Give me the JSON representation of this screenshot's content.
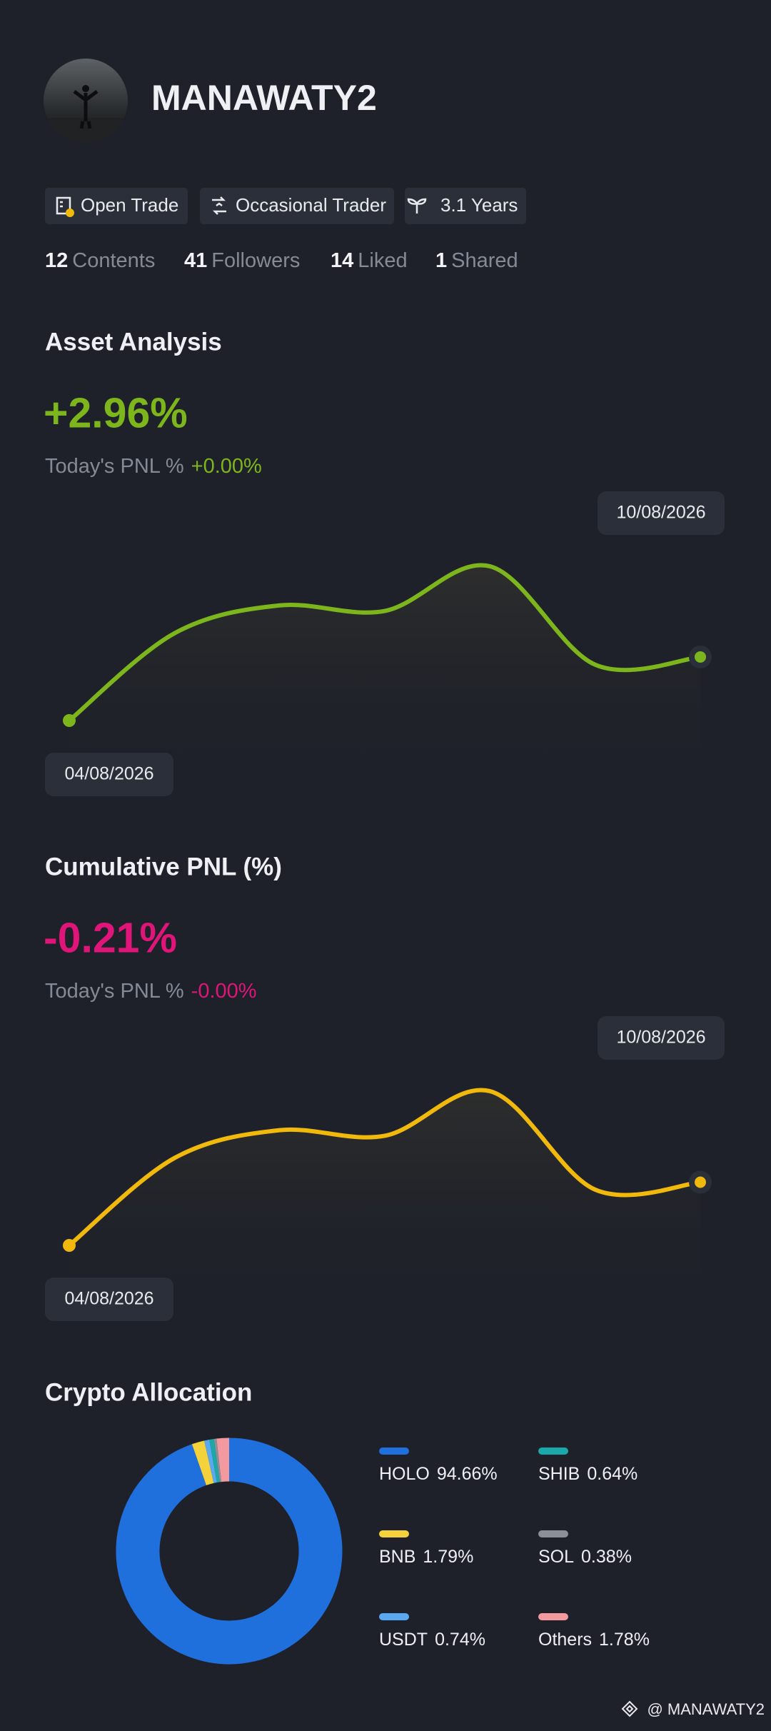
{
  "profile": {
    "name": "MANAWATY2",
    "tags": [
      "Open Trade",
      "Occasional Trader",
      "3.1 Years"
    ],
    "stats": [
      {
        "count": 12,
        "label": "Contents"
      },
      {
        "count": 41,
        "label": "Followers"
      },
      {
        "count": 14,
        "label": "Liked"
      },
      {
        "count": 1,
        "label": "Shared"
      }
    ]
  },
  "chart_data": [
    {
      "type": "line",
      "title": "Asset Analysis",
      "headline": "+2.96%",
      "today_label": "Today's PNL %",
      "today_value": "+0.00%",
      "x": [
        "04/08/2026",
        null,
        null,
        null,
        null,
        null,
        "10/08/2026"
      ],
      "series": [
        {
          "color": "#7db61c",
          "values": [
            0,
            4.06,
            5.36,
            5.1,
            7.18,
            2.6,
            2.96
          ]
        }
      ]
    },
    {
      "type": "line",
      "title": "Cumulative PNL (%)",
      "headline": "-0.21%",
      "today_label": "Today's PNL %",
      "today_value": "-0.00%",
      "x": [
        "04/08/2026",
        null,
        null,
        null,
        null,
        null,
        "10/08/2026"
      ],
      "series": [
        {
          "color": "#f0b90b",
          "values": [
            -0.55,
            -0.08,
            0.07,
            0.04,
            0.28,
            -0.25,
            -0.21
          ]
        }
      ]
    },
    {
      "type": "pie",
      "title": "Crypto Allocation",
      "categories": [
        "HOLO",
        "BNB",
        "USDT",
        "SHIB",
        "SOL",
        "Others"
      ],
      "values": [
        94.66,
        1.79,
        0.74,
        0.64,
        0.38,
        1.78
      ],
      "value_labels": [
        "94.66%",
        "1.79%",
        "0.74%",
        "0.64%",
        "0.38%",
        "1.78%"
      ],
      "colors": [
        "#1f6fdc",
        "#f3d23c",
        "#5aa9f0",
        "#1aa8a8",
        "#8a8f98",
        "#f29aa0"
      ]
    }
  ],
  "watermark": "@ MANAWATY2"
}
